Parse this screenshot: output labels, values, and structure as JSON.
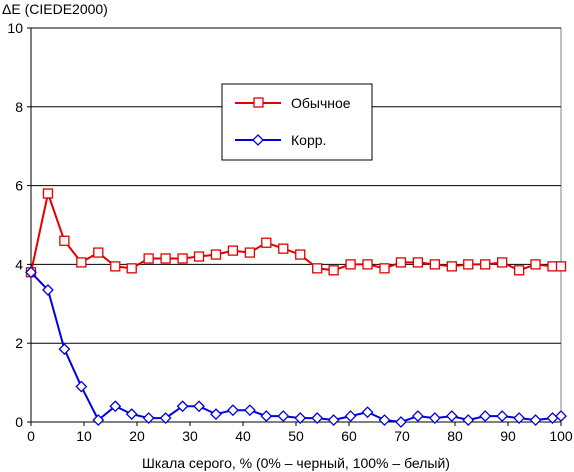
{
  "chart_data": {
    "type": "line",
    "title": "",
    "ylabel": "ΔE (CIEDE2000)",
    "xlabel": "Шкала серого, % (0% – черный, 100% – белый)",
    "xlim": [
      0,
      100
    ],
    "ylim": [
      0,
      10
    ],
    "xticks": [
      0,
      10,
      20,
      30,
      40,
      50,
      60,
      70,
      80,
      90,
      100
    ],
    "yticks": [
      0,
      2,
      4,
      6,
      8,
      10
    ],
    "grid": "horizontal",
    "legend_position": "upper-middle",
    "x": [
      0,
      3.2,
      6.3,
      9.5,
      12.7,
      15.9,
      19.0,
      22.2,
      25.4,
      28.6,
      31.7,
      34.9,
      38.1,
      41.3,
      44.4,
      47.6,
      50.8,
      54.0,
      57.1,
      60.3,
      63.5,
      66.7,
      69.8,
      73.0,
      76.2,
      79.4,
      82.5,
      85.7,
      88.9,
      92.1,
      95.2,
      98.4,
      100
    ],
    "series": [
      {
        "name": "Обычное",
        "color": "#e00000",
        "marker": "square",
        "values": [
          3.8,
          5.8,
          4.6,
          4.05,
          4.3,
          3.95,
          3.9,
          4.15,
          4.15,
          4.15,
          4.2,
          4.25,
          4.35,
          4.3,
          4.55,
          4.4,
          4.25,
          3.9,
          3.85,
          4.0,
          4.0,
          3.9,
          4.05,
          4.05,
          4.0,
          3.95,
          4.0,
          4.0,
          4.05,
          3.85,
          4.0,
          3.95,
          3.95
        ]
      },
      {
        "name": "Корр.",
        "color": "#0000e0",
        "marker": "diamond",
        "values": [
          3.8,
          3.35,
          1.85,
          0.9,
          0.05,
          0.4,
          0.2,
          0.1,
          0.1,
          0.4,
          0.4,
          0.2,
          0.3,
          0.3,
          0.15,
          0.15,
          0.1,
          0.1,
          0.05,
          0.15,
          0.25,
          0.05,
          0.0,
          0.15,
          0.1,
          0.15,
          0.05,
          0.15,
          0.15,
          0.1,
          0.05,
          0.1,
          0.15
        ]
      }
    ]
  }
}
